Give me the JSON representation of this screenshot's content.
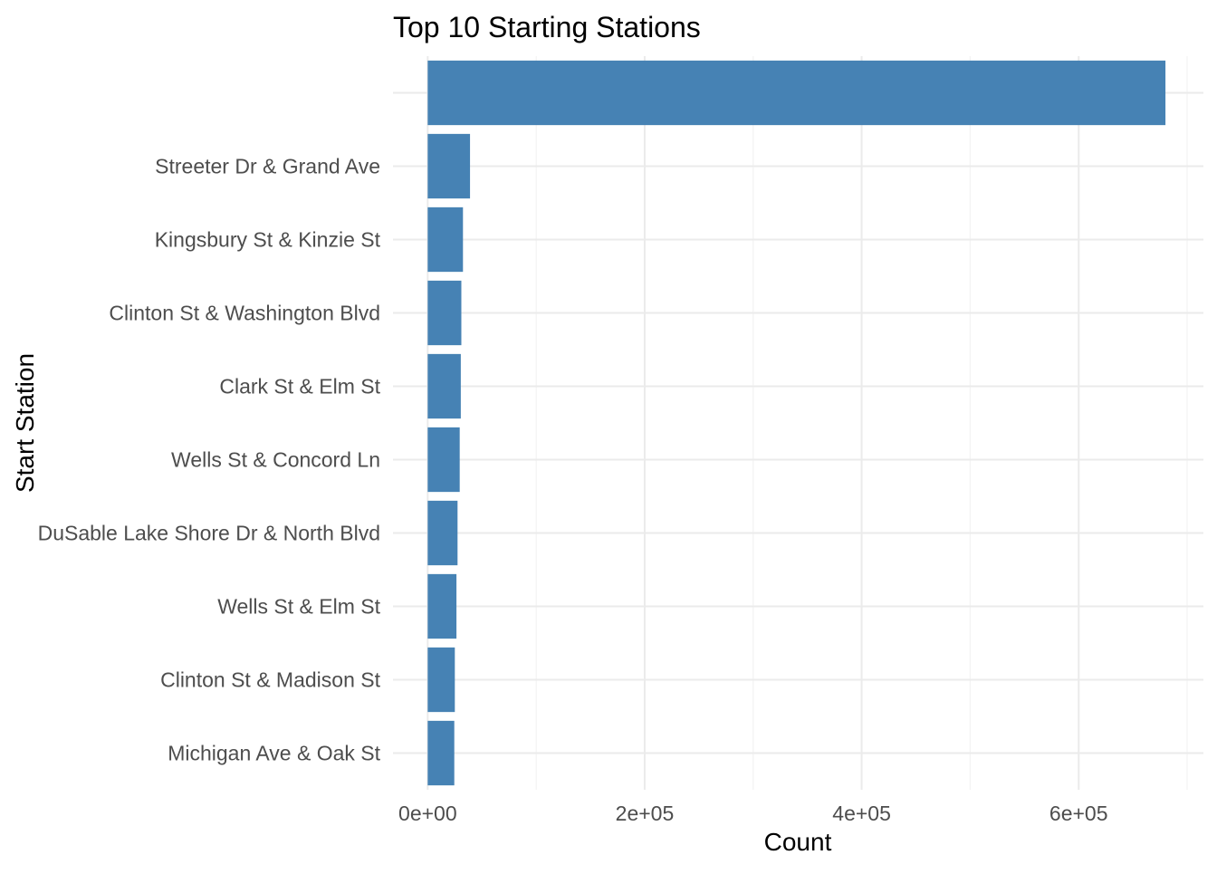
{
  "chart_data": {
    "type": "bar",
    "orientation": "horizontal",
    "title": "Top 10 Starting Stations",
    "xlabel": "Count",
    "ylabel": "Start Station",
    "categories": [
      "",
      "Streeter Dr & Grand Ave",
      "Kingsbury St & Kinzie St",
      "Clinton St & Washington Blvd",
      "Clark St & Elm St",
      "Wells St & Concord Ln",
      "DuSable Lake Shore Dr & North Blvd",
      "Wells St & Elm St",
      "Clinton St & Madison St",
      "Michigan Ave & Oak St"
    ],
    "values": [
      680000,
      39000,
      32500,
      31000,
      30500,
      29500,
      27500,
      26500,
      25000,
      24500
    ],
    "xlim": [
      -32000,
      715000
    ],
    "xticks": [
      0,
      200000,
      400000,
      600000
    ],
    "xtick_labels": [
      "0e+00",
      "2e+05",
      "4e+05",
      "6e+05"
    ],
    "grid": true,
    "legend": "none",
    "bar_color": "#4682b4"
  }
}
